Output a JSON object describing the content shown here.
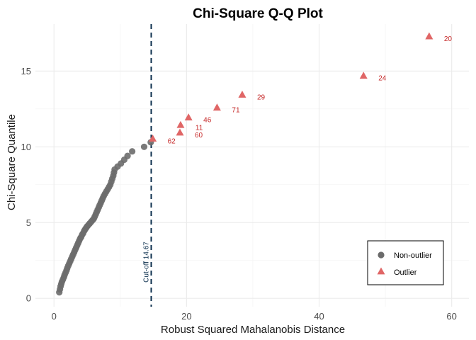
{
  "chart_data": {
    "type": "scatter",
    "title": "Chi-Square Q-Q Plot",
    "xlabel": "Robust Squared Mahalanobis Distance",
    "ylabel": "Chi-Square Quantile",
    "xlim": [
      -2.8,
      62.6
    ],
    "ylim": [
      -0.55,
      18.1
    ],
    "x_ticks": [
      0,
      20,
      40,
      60
    ],
    "y_ticks": [
      0,
      5,
      10,
      15
    ],
    "grid": true,
    "legend_position": "bottom-right",
    "cutoff": {
      "value": 14.67,
      "label": "Cut-off 14.67",
      "color": "#0b2f4d"
    },
    "series": [
      {
        "name": "Non-outlier",
        "marker": "circle",
        "color": "#6b6b6b",
        "points": [
          [
            0.8,
            0.4
          ],
          [
            0.9,
            0.6
          ],
          [
            1.0,
            0.8
          ],
          [
            1.1,
            0.95
          ],
          [
            1.2,
            1.1
          ],
          [
            1.35,
            1.25
          ],
          [
            1.5,
            1.4
          ],
          [
            1.6,
            1.55
          ],
          [
            1.75,
            1.7
          ],
          [
            1.9,
            1.85
          ],
          [
            2.0,
            2.0
          ],
          [
            2.15,
            2.15
          ],
          [
            2.3,
            2.3
          ],
          [
            2.45,
            2.45
          ],
          [
            2.6,
            2.6
          ],
          [
            2.75,
            2.75
          ],
          [
            2.9,
            2.9
          ],
          [
            3.05,
            3.05
          ],
          [
            3.2,
            3.2
          ],
          [
            3.35,
            3.35
          ],
          [
            3.5,
            3.5
          ],
          [
            3.65,
            3.65
          ],
          [
            3.8,
            3.8
          ],
          [
            3.95,
            3.95
          ],
          [
            4.1,
            4.05
          ],
          [
            4.25,
            4.2
          ],
          [
            4.4,
            4.3
          ],
          [
            4.55,
            4.45
          ],
          [
            4.7,
            4.55
          ],
          [
            4.85,
            4.65
          ],
          [
            5.0,
            4.75
          ],
          [
            5.2,
            4.85
          ],
          [
            5.4,
            4.95
          ],
          [
            5.6,
            5.05
          ],
          [
            5.8,
            5.15
          ],
          [
            6.0,
            5.25
          ],
          [
            6.15,
            5.4
          ],
          [
            6.3,
            5.55
          ],
          [
            6.45,
            5.7
          ],
          [
            6.6,
            5.85
          ],
          [
            6.75,
            6.0
          ],
          [
            6.9,
            6.15
          ],
          [
            7.05,
            6.3
          ],
          [
            7.2,
            6.45
          ],
          [
            7.35,
            6.6
          ],
          [
            7.5,
            6.75
          ],
          [
            7.7,
            6.9
          ],
          [
            7.9,
            7.05
          ],
          [
            8.1,
            7.2
          ],
          [
            8.3,
            7.35
          ],
          [
            8.5,
            7.5
          ],
          [
            8.65,
            7.7
          ],
          [
            8.8,
            7.9
          ],
          [
            8.95,
            8.1
          ],
          [
            9.05,
            8.3
          ],
          [
            9.15,
            8.5
          ],
          [
            9.6,
            8.7
          ],
          [
            10.1,
            8.9
          ],
          [
            10.6,
            9.15
          ],
          [
            11.1,
            9.4
          ],
          [
            11.8,
            9.7
          ],
          [
            13.6,
            10.0
          ],
          [
            14.6,
            10.3
          ]
        ]
      },
      {
        "name": "Outlier",
        "marker": "triangle",
        "color": "#e06666",
        "points": [
          {
            "x": 14.9,
            "y": 10.55,
            "label": "62"
          },
          {
            "x": 19.0,
            "y": 10.95,
            "label": "60"
          },
          {
            "x": 19.1,
            "y": 11.45,
            "label": "11"
          },
          {
            "x": 20.3,
            "y": 11.95,
            "label": "46"
          },
          {
            "x": 24.6,
            "y": 12.6,
            "label": "71"
          },
          {
            "x": 28.4,
            "y": 13.45,
            "label": "29"
          },
          {
            "x": 46.7,
            "y": 14.7,
            "label": "24"
          },
          {
            "x": 56.6,
            "y": 17.3,
            "label": "20"
          }
        ]
      }
    ]
  }
}
